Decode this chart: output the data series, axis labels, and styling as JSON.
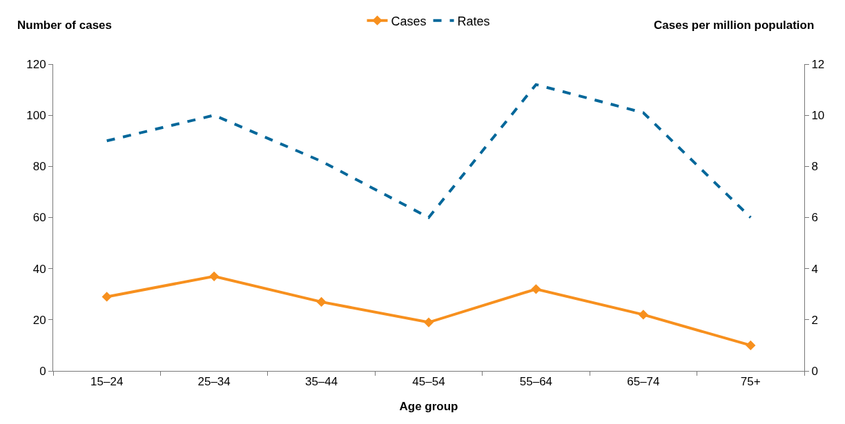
{
  "chart_data": {
    "type": "line",
    "xlabel": "Age group",
    "ylabel": "Number of cases",
    "y2label": "Cases per million population",
    "categories": [
      "15–24",
      "25–34",
      "35–44",
      "45–54",
      "55–64",
      "65–74",
      "75+"
    ],
    "series": [
      {
        "name": "Cases",
        "color": "#f7901e",
        "values": [
          29,
          37,
          27,
          19,
          32,
          22,
          10
        ],
        "marker": "diamond",
        "line_style": "solid"
      },
      {
        "name": "Rates",
        "color": "#00679a",
        "values": [
          9.0,
          10.0,
          8.2,
          6.0,
          11.2,
          10.1,
          6.0
        ],
        "axis": "y2",
        "marker": "none",
        "line_style": "dashed"
      }
    ],
    "ylim": [
      0,
      120
    ],
    "yticks": [
      0,
      20,
      40,
      60,
      80,
      100,
      120
    ],
    "y2lim": [
      0,
      12
    ],
    "y2ticks": [
      0,
      2,
      4,
      6,
      8,
      10,
      12
    ],
    "grid": false,
    "legend": "top"
  }
}
